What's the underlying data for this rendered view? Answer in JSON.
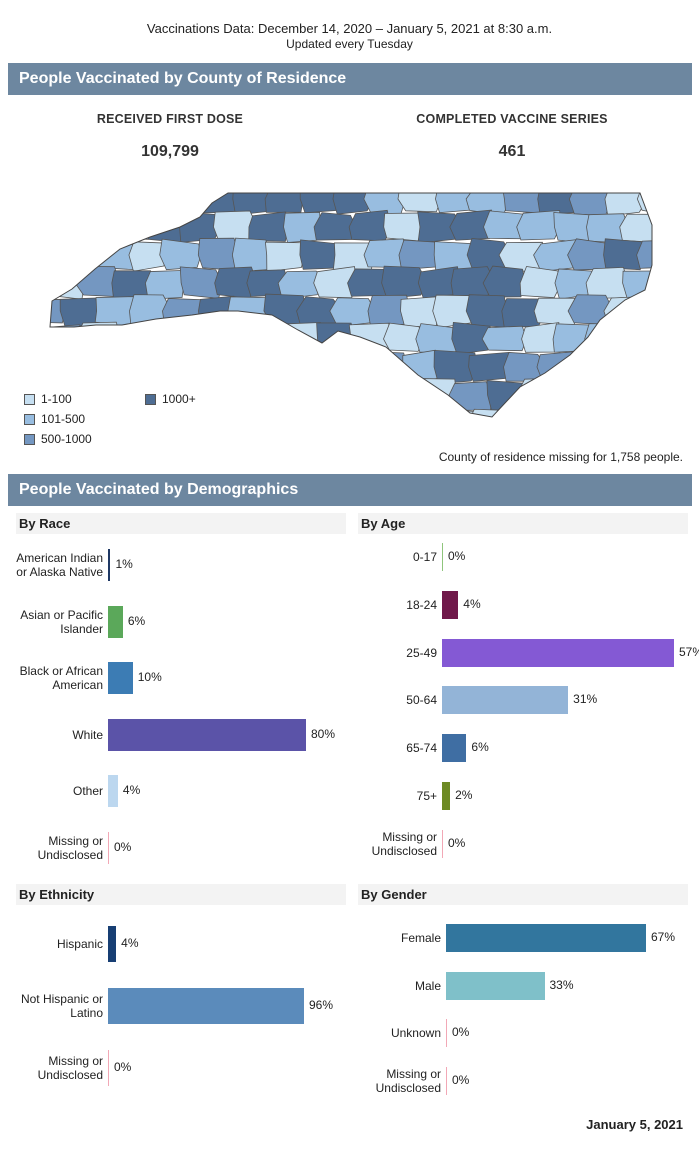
{
  "header": {
    "line1": "Vaccinations Data: December 14, 2020 – January 5, 2021 at 8:30 a.m.",
    "line2": "Updated every Tuesday"
  },
  "county_section": {
    "title": "People Vaccinated by County of Residence",
    "first_dose_label": "RECEIVED FIRST DOSE",
    "first_dose_value": "109,799",
    "completed_label": "COMPLETED VACCINE SERIES",
    "completed_value": "461",
    "legend": [
      {
        "label": "1-100",
        "color": "#c6dff1"
      },
      {
        "label": "101-500",
        "color": "#98bde0"
      },
      {
        "label": "500-1000",
        "color": "#7497c1"
      },
      {
        "label": "1000+",
        "color": "#4e6d93"
      }
    ],
    "missing_note": "County of residence missing for 1,758 people."
  },
  "demographics_section": {
    "title": "People Vaccinated by Demographics"
  },
  "chart_data": [
    {
      "type": "bar",
      "title": "By Race",
      "orientation": "horizontal",
      "categories": [
        "American Indian or Alaska Native",
        "Asian or Pacific Islander",
        "Black or African American",
        "White",
        "Other",
        "Missing or Undisclosed"
      ],
      "values": [
        1,
        6,
        10,
        80,
        4,
        0
      ],
      "labels": [
        "1%",
        "6%",
        "10%",
        "80%",
        "4%",
        "0%"
      ],
      "colors": [
        "#1f3864",
        "#5ba85a",
        "#3c7cb4",
        "#5b53a8",
        "#bcd7ef",
        "#f2a8b6"
      ],
      "unit": "%"
    },
    {
      "type": "bar",
      "title": "By Age",
      "orientation": "horizontal",
      "categories": [
        "0-17",
        "18-24",
        "25-49",
        "50-64",
        "65-74",
        "75+",
        "Missing or Undisclosed"
      ],
      "values": [
        0,
        4,
        57,
        31,
        6,
        2,
        0
      ],
      "labels": [
        "0%",
        "4%",
        "57%",
        "31%",
        "6%",
        "2%",
        "0%"
      ],
      "colors": [
        "#8fc57c",
        "#70184a",
        "#8459d4",
        "#93b4d7",
        "#3f6ea3",
        "#6d8a24",
        "#f2a8b6"
      ],
      "unit": "%"
    },
    {
      "type": "bar",
      "title": "By Ethnicity",
      "orientation": "horizontal",
      "categories": [
        "Hispanic",
        "Not Hispanic or Latino",
        "Missing or Undisclosed"
      ],
      "values": [
        4,
        96,
        0
      ],
      "labels": [
        "4%",
        "96%",
        "0%"
      ],
      "colors": [
        "#173e73",
        "#5b8bbb",
        "#f2a8b6"
      ],
      "unit": "%"
    },
    {
      "type": "bar",
      "title": "By Gender",
      "orientation": "horizontal",
      "categories": [
        "Female",
        "Male",
        "Unknown",
        "Missing or Undisclosed"
      ],
      "values": [
        67,
        33,
        0,
        0
      ],
      "labels": [
        "67%",
        "33%",
        "0%",
        "0%"
      ],
      "colors": [
        "#32769e",
        "#7fc0c9",
        "#f2a8b6",
        "#f2a8b6"
      ],
      "unit": "%"
    }
  ],
  "footer": {
    "date": "January 5, 2021"
  }
}
